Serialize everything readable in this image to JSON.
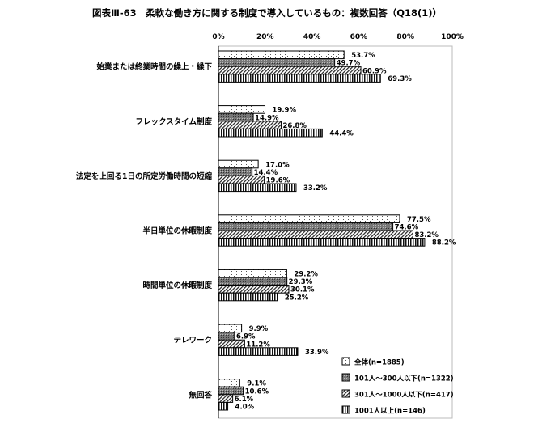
{
  "chart_data": {
    "type": "bar",
    "orientation": "horizontal",
    "title": "図表Ⅲ-63　柔軟な働き方に関する制度で導入しているもの：複数回答（Q18(1)）",
    "xlim": [
      0,
      100
    ],
    "x_ticks": [
      "0%",
      "20%",
      "40%",
      "60%",
      "80%",
      "100%"
    ],
    "categories": [
      "始業または終業時間の繰上・繰下",
      "フレックスタイム制度",
      "法定を上回る1日の所定労働時間の短縮",
      "半日単位の休暇制度",
      "時間単位の休暇制度",
      "テレワーク",
      "無回答"
    ],
    "series": [
      {
        "name": "全体(n=1885)",
        "pattern": "dots",
        "values": [
          53.7,
          19.9,
          17.0,
          77.5,
          29.2,
          9.9,
          9.1
        ]
      },
      {
        "name": "101人～300人以下(n=1322)",
        "pattern": "dark-crosshatch",
        "values": [
          49.7,
          14.9,
          14.4,
          74.6,
          29.3,
          6.9,
          10.6
        ]
      },
      {
        "name": "301人～1000人以下(n=417)",
        "pattern": "diagonal",
        "values": [
          60.9,
          26.8,
          19.6,
          83.2,
          30.1,
          11.2,
          6.1
        ]
      },
      {
        "name": "1001人以上(n=146)",
        "pattern": "vertical",
        "values": [
          69.3,
          44.4,
          33.2,
          88.2,
          25.2,
          33.9,
          4.0
        ]
      }
    ],
    "legend_position": "bottom-right",
    "value_suffix": "%"
  }
}
